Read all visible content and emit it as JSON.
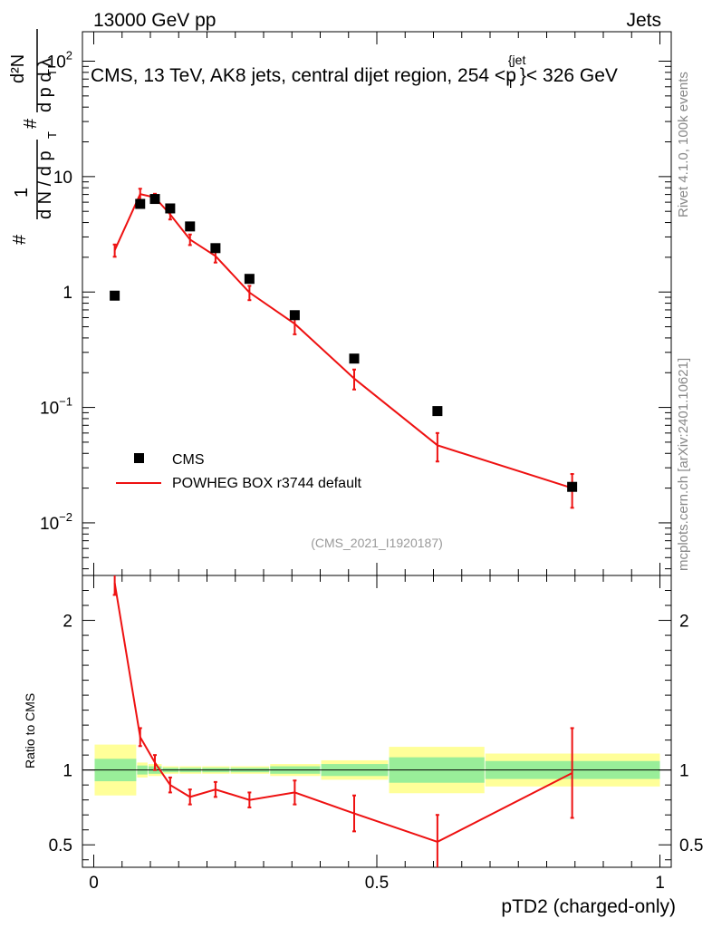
{
  "header": {
    "left": "13000 GeV pp",
    "right": "Jets"
  },
  "side_labels": {
    "rivet": "Rivet 4.1.0,  100k events",
    "mcplots": "mcplots.cern.ch [arXiv:2401.10621]"
  },
  "chart_data": {
    "type": "scatter",
    "title": "CMS, 13 TeV, AK8 jets, central dijet region, 254 <p_T^{jet}< 326 GeV",
    "title_parts": {
      "before": "CMS, 13 TeV, AK8 jets, central dijet region, 254 <p",
      "sup": "{jet",
      "sub": "T",
      "after": "}< 326 GeV"
    },
    "analysis_id": "(CMS_2021_I1920187)",
    "xlabel": "pTD2 (charged-only)",
    "ylabel_main": "# 1/(dN/dp_T) # d²N/(dp_T dλ)",
    "ylabel_parts": {
      "hash": "#",
      "one": "1",
      "den": "d N / d p",
      "T": "T",
      "dN": "d²N",
      "dpdl": "d p  d λ"
    },
    "ylabel_ratio": "Ratio to CMS",
    "xlim": [
      -0.02,
      1.02
    ],
    "ylim_main_log": [
      0.0035,
      180
    ],
    "ylim_ratio": [
      0.35,
      2.3
    ],
    "x_ticks": [
      0,
      0.5,
      1
    ],
    "x_tick_labels": [
      "0",
      "0.5",
      "1"
    ],
    "y_ticks_main": [
      0.01,
      0.1,
      1,
      10,
      100
    ],
    "y_tick_labels_main": [
      {
        "base": "10",
        "exp": "−2"
      },
      {
        "base": "10",
        "exp": "−1"
      },
      {
        "base": "1",
        "exp": ""
      },
      {
        "base": "10",
        "exp": ""
      },
      {
        "base": "10",
        "exp": "2"
      }
    ],
    "y_ticks_ratio": [
      0.5,
      1,
      2
    ],
    "y_tick_labels_ratio": [
      "0.5",
      "1",
      "2"
    ],
    "legend": [
      {
        "label": "CMS",
        "style": "marker"
      },
      {
        "label": "POWHEG BOX r3744 default",
        "style": "line"
      }
    ],
    "legend_position": "lower-left",
    "colors": {
      "data": "#000000",
      "mc": "#ee1111",
      "band_inner": "#99ee99",
      "band_outer": "#ffff99"
    },
    "bins": [
      [
        0.0,
        0.075
      ],
      [
        0.075,
        0.095
      ],
      [
        0.095,
        0.12
      ],
      [
        0.12,
        0.15
      ],
      [
        0.15,
        0.19
      ],
      [
        0.19,
        0.24
      ],
      [
        0.24,
        0.31
      ],
      [
        0.31,
        0.4
      ],
      [
        0.4,
        0.52
      ],
      [
        0.52,
        0.69
      ],
      [
        0.69,
        1.0
      ]
    ],
    "series": [
      {
        "name": "CMS",
        "x": [
          0.037,
          0.082,
          0.108,
          0.135,
          0.17,
          0.215,
          0.275,
          0.355,
          0.46,
          0.607,
          0.845
        ],
        "values": [
          0.93,
          5.8,
          6.4,
          5.3,
          3.7,
          2.4,
          1.3,
          0.63,
          0.265,
          0.093,
          0.0205
        ]
      },
      {
        "name": "POWHEG BOX r3744 default",
        "x": [
          0.037,
          0.082,
          0.108,
          0.135,
          0.17,
          0.215,
          0.275,
          0.355,
          0.46,
          0.607,
          0.845
        ],
        "values": [
          2.3,
          7.05,
          6.6,
          4.7,
          2.85,
          2.05,
          0.99,
          0.53,
          0.178,
          0.047,
          0.02
        ],
        "errors": [
          0.28,
          0.8,
          0.5,
          0.45,
          0.3,
          0.25,
          0.14,
          0.1,
          0.035,
          0.013,
          0.0065
        ]
      }
    ],
    "ratio": {
      "x": [
        0.037,
        0.082,
        0.108,
        0.135,
        0.17,
        0.215,
        0.275,
        0.355,
        0.46,
        0.607,
        0.845
      ],
      "mc_values": [
        2.25,
        1.22,
        1.05,
        0.9,
        0.82,
        0.87,
        0.8,
        0.85,
        0.71,
        0.52,
        0.98
      ],
      "mc_errors": [
        0.08,
        0.06,
        0.05,
        0.05,
        0.05,
        0.05,
        0.05,
        0.08,
        0.12,
        0.18,
        0.3
      ],
      "band_inner": [
        0.075,
        0.03,
        0.025,
        0.015,
        0.015,
        0.015,
        0.015,
        0.025,
        0.04,
        0.085,
        0.06
      ],
      "band_outer": [
        0.17,
        0.05,
        0.04,
        0.025,
        0.025,
        0.025,
        0.025,
        0.04,
        0.065,
        0.155,
        0.11
      ]
    }
  }
}
